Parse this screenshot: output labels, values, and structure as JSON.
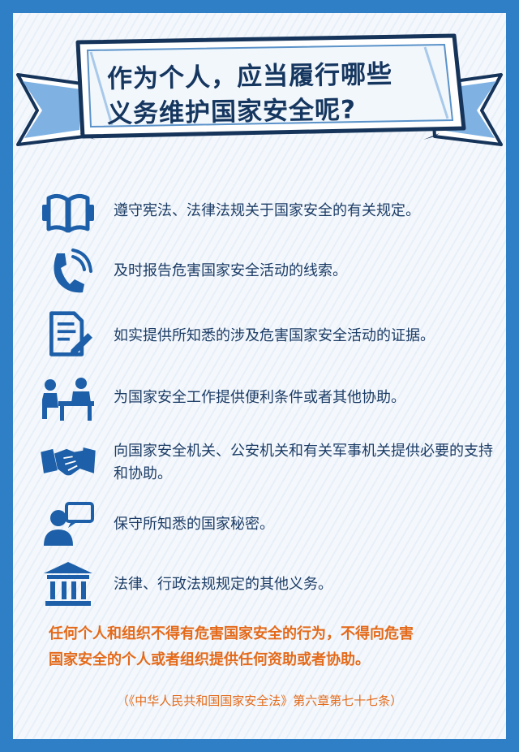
{
  "title": {
    "line1": "作为个人，应当履行哪些",
    "line2": "义务维护国家安全呢?"
  },
  "items": [
    {
      "icon": "open-book-icon",
      "text": "遵守宪法、法律法规关于国家安全的有关规定。"
    },
    {
      "icon": "phone-icon",
      "text": "及时报告危害国家安全活动的线索。"
    },
    {
      "icon": "document-pen-icon",
      "text": "如实提供所知悉的涉及危害国家安全活动的证据。"
    },
    {
      "icon": "people-at-desk-icon",
      "text": "为国家安全工作提供便利条件或者其他协助。"
    },
    {
      "icon": "handshake-icon",
      "text": "向国家安全机关、公安机关和有关军事机关提供必要的支持和协助。"
    },
    {
      "icon": "person-speech-icon",
      "text": "保守所知悉的国家秘密。"
    },
    {
      "icon": "government-building-icon",
      "text": "法律、行政法规规定的其他义务。"
    }
  ],
  "warning": {
    "line1": "任何个人和组织不得有危害国家安全的行为，不得向危害",
    "line2": "国家安全的个人或者组织提供任何资助或者协助。"
  },
  "citation": "（《中华人民共和国国家安全法》第六章第七十七条）",
  "colors": {
    "border_blue": "#2f7fc6",
    "icon_blue": "#1d5fa8",
    "title_navy": "#15365f",
    "text_navy": "#1c3c66",
    "warning_orange": "#e46a1a"
  }
}
